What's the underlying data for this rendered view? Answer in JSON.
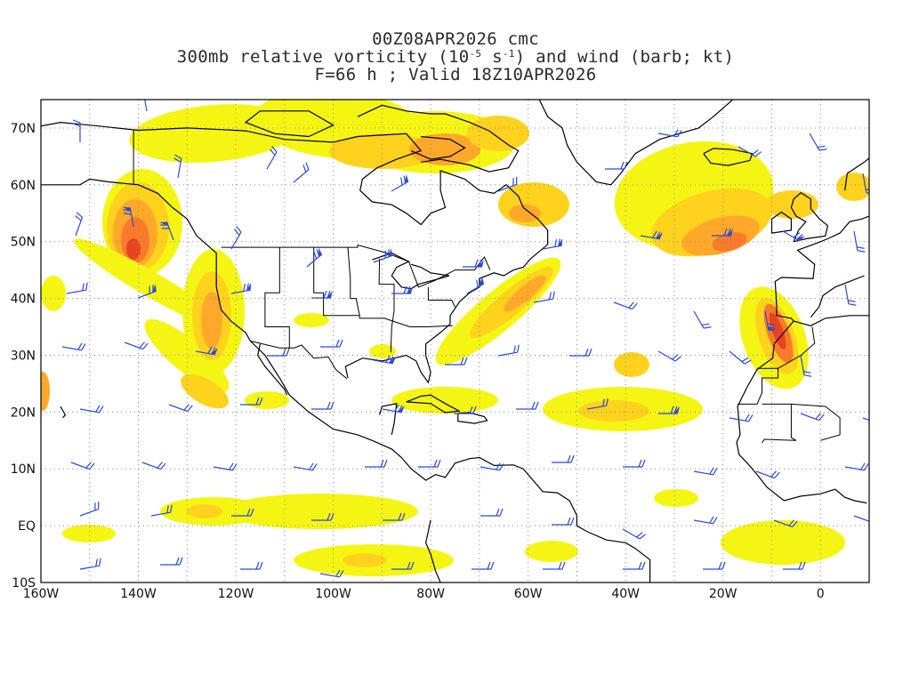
{
  "title": {
    "line1": "00Z08APR2026 cmc",
    "line2_pre": "300mb relative vorticity (10",
    "line2_exp1": "-5",
    "line2_mid": " s",
    "line2_exp2": "-1",
    "line2_post": ") and wind (barb; kt)",
    "line3": "F=66 h ; Valid 18Z10APR2026"
  },
  "map": {
    "projection": "cylindrical equidistant",
    "lon_range": [
      -160,
      10
    ],
    "lat_range": [
      -10,
      75
    ],
    "gridlines": "dotted",
    "coastline_color": "#000000",
    "barb_color": "#2a4bd7"
  },
  "axes": {
    "y_labels": [
      {
        "lat": 70,
        "text": "70N"
      },
      {
        "lat": 60,
        "text": "60N"
      },
      {
        "lat": 50,
        "text": "50N"
      },
      {
        "lat": 40,
        "text": "40N"
      },
      {
        "lat": 30,
        "text": "30N"
      },
      {
        "lat": 20,
        "text": "20N"
      },
      {
        "lat": 10,
        "text": "10N"
      },
      {
        "lat": 0,
        "text": "EQ"
      },
      {
        "lat": -10,
        "text": "10S"
      }
    ],
    "x_labels": [
      {
        "lon": -160,
        "text": "160W"
      },
      {
        "lon": -140,
        "text": "140W"
      },
      {
        "lon": -120,
        "text": "120W"
      },
      {
        "lon": -100,
        "text": "100W"
      },
      {
        "lon": -80,
        "text": "80W"
      },
      {
        "lon": -60,
        "text": "60W"
      },
      {
        "lon": -40,
        "text": "40W"
      },
      {
        "lon": -20,
        "text": "20W"
      },
      {
        "lon": 0,
        "text": "0"
      }
    ]
  },
  "vorticity_colors": [
    "#f5f514",
    "#ffd21e",
    "#ffa82a",
    "#fb7a2a",
    "#e8441e"
  ]
}
